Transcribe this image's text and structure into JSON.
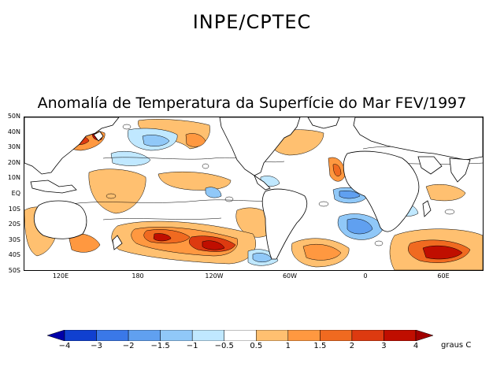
{
  "header": {
    "organization": "INPE/CPTEC"
  },
  "map": {
    "title": "Anomalía de Temperatura da Superfície do Mar FEV/1997",
    "lat_labels": [
      "50N",
      "40N",
      "30N",
      "20N",
      "10N",
      "EQ",
      "10S",
      "20S",
      "30S",
      "40S",
      "50S"
    ],
    "lon_labels": [
      "120E",
      "180",
      "120W",
      "60W",
      "0",
      "60E"
    ]
  },
  "legend": {
    "bins": [
      {
        "from": "-inf",
        "to": -4,
        "color": "#0000a8"
      },
      {
        "from": -4,
        "to": -3,
        "color": "#1040d0"
      },
      {
        "from": -3,
        "to": -2,
        "color": "#3a78e8"
      },
      {
        "from": -2,
        "to": -1.5,
        "color": "#60a0f0"
      },
      {
        "from": -1.5,
        "to": -1,
        "color": "#90c8f8"
      },
      {
        "from": -1,
        "to": -0.5,
        "color": "#c0e8ff"
      },
      {
        "from": -0.5,
        "to": 0.5,
        "color": "#ffffff"
      },
      {
        "from": 0.5,
        "to": 1,
        "color": "#ffc070"
      },
      {
        "from": 1,
        "to": 1.5,
        "color": "#ff9840"
      },
      {
        "from": 1.5,
        "to": 2,
        "color": "#f06a20"
      },
      {
        "from": 2,
        "to": 3,
        "color": "#dd3a10"
      },
      {
        "from": 3,
        "to": 4,
        "color": "#c00e00"
      },
      {
        "from": 4,
        "to": "inf",
        "color": "#a00000"
      }
    ],
    "tick_labels": [
      "−4",
      "−3",
      "−2",
      "−1.5",
      "−1",
      "−0.5",
      "0.5",
      "1",
      "1.5",
      "2",
      "3",
      "4"
    ],
    "units": "graus C"
  },
  "colors": {
    "land": "#ffffff",
    "coast": "#000000"
  }
}
